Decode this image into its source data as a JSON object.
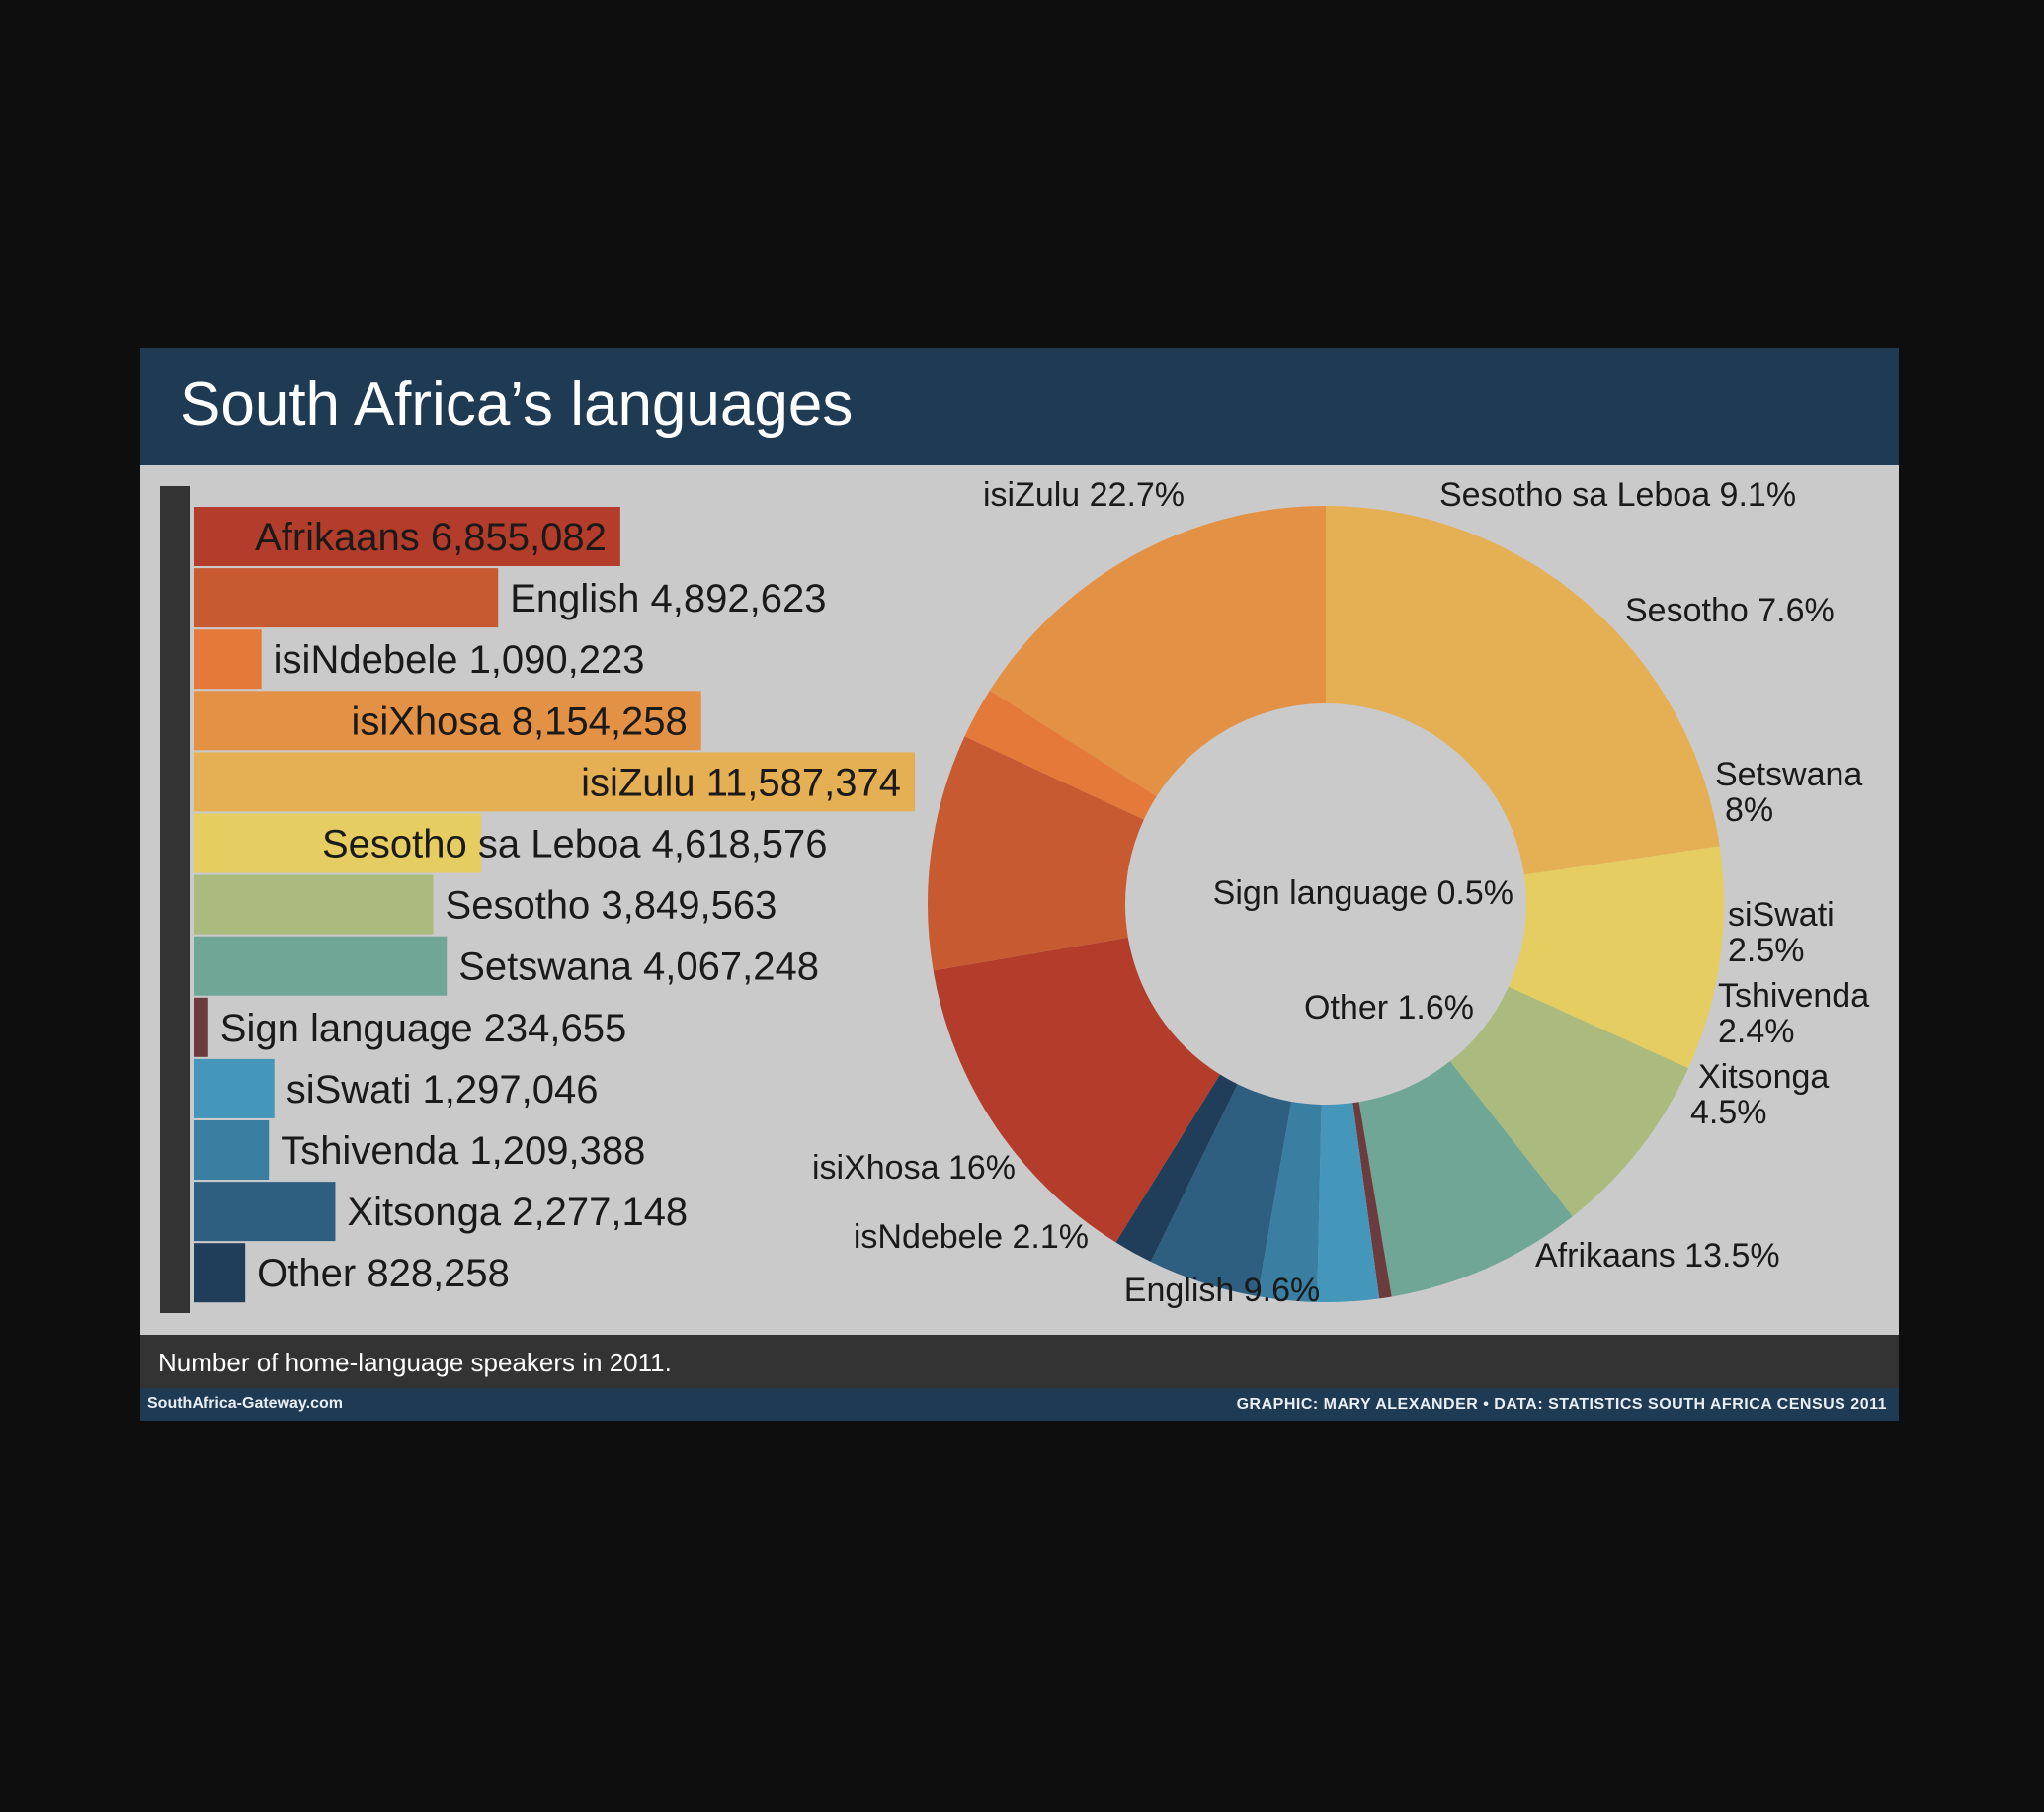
{
  "title": "South Africa’s languages",
  "caption": "Number of home-language speakers in 2011.",
  "footer": {
    "site": "SouthAfrica-Gateway.com",
    "credit": "GRAPHIC: MARY ALEXANDER • DATA: STATISTICS SOUTH AFRICA CENSUS 2011"
  },
  "colors": {
    "header": "#1f3a53",
    "panel": "#cacaca",
    "axis": "#333333",
    "caption_bar": "#333333"
  },
  "chart_data": [
    {
      "type": "bar",
      "orientation": "horizontal",
      "categories": [
        "Afrikaans",
        "English",
        "isiNdebele",
        "isiXhosa",
        "isiZulu",
        "Sesotho sa Leboa",
        "Sesotho",
        "Setswana",
        "Sign language",
        "siSwati",
        "Tshivenda",
        "Xitsonga",
        "Other"
      ],
      "values": [
        6855082,
        4892623,
        1090223,
        8154258,
        11587374,
        4618576,
        3849563,
        4067248,
        234655,
        1297046,
        1209388,
        2277148,
        828258
      ],
      "labels": [
        "Afrikaans 6,855,082",
        "English 4,892,623",
        "isiNdebele 1,090,223",
        "isiXhosa 8,154,258",
        "isiZulu 11,587,374",
        "Sesotho sa Leboa 4,618,576",
        "Sesotho 3,849,563",
        "Setswana 4,067,248",
        "Sign language 234,655",
        "siSwati 1,297,046",
        "Tshivenda 1,209,388",
        "Xitsonga 2,277,148",
        "Other 828,258"
      ],
      "colors": [
        "#b33c2a",
        "#c75a30",
        "#e5793a",
        "#e39144",
        "#e5b054",
        "#e6cd62",
        "#abbb7d",
        "#6fa696",
        "#6b3b3d",
        "#4596bb",
        "#3a7ea2",
        "#2e5f80",
        "#203d59"
      ]
    },
    {
      "type": "pie",
      "style": "donut",
      "slices": [
        {
          "name": "isiZulu",
          "label": "isiZulu 22.7%",
          "value": 22.7,
          "color": "#e5b054"
        },
        {
          "name": "Sesotho sa Leboa",
          "label": "Sesotho sa Leboa 9.1%",
          "value": 9.1,
          "color": "#e6cd62"
        },
        {
          "name": "Sesotho",
          "label": "Sesotho 7.6%",
          "value": 7.6,
          "color": "#abbb7d"
        },
        {
          "name": "Setswana",
          "label": [
            "Setswana",
            "8%"
          ],
          "value": 8.0,
          "color": "#6fa696"
        },
        {
          "name": "Sign language",
          "label": "Sign language 0.5%",
          "value": 0.5,
          "color": "#6b3b3d"
        },
        {
          "name": "siSwati",
          "label": [
            "siSwati",
            "2.5%"
          ],
          "value": 2.5,
          "color": "#4596bb"
        },
        {
          "name": "Tshivenda",
          "label": [
            "Tshivenda",
            "2.4%"
          ],
          "value": 2.4,
          "color": "#3a7ea2"
        },
        {
          "name": "Xitsonga",
          "label": [
            "Xitsonga",
            "4.5%"
          ],
          "value": 4.5,
          "color": "#2e5f80"
        },
        {
          "name": "Other",
          "label": "Other 1.6%",
          "value": 1.6,
          "color": "#203d59"
        },
        {
          "name": "Afrikaans",
          "label": "Afrikaans 13.5%",
          "value": 13.5,
          "color": "#b33c2a"
        },
        {
          "name": "English",
          "label": "English 9.6%",
          "value": 9.6,
          "color": "#c75a30"
        },
        {
          "name": "isNdebele",
          "label": "isNdebele 2.1%",
          "value": 2.1,
          "color": "#e5793a"
        },
        {
          "name": "isiXhosa",
          "label": "isiXhosa 16%",
          "value": 16.0,
          "color": "#e39144"
        }
      ]
    }
  ]
}
